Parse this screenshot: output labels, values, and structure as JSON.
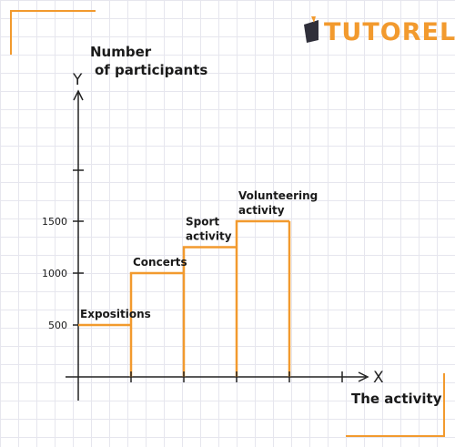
{
  "brand": {
    "name": "TUTORELA",
    "color": "#f29a2e"
  },
  "chart_data": {
    "type": "bar",
    "categories": [
      "Expositions",
      "Concerts",
      "Sport activity",
      "Volunteering activity"
    ],
    "category_lines": [
      [
        "Expositions"
      ],
      [
        "Concerts"
      ],
      [
        "Sport",
        "activity"
      ],
      [
        "Volunteering",
        "activity"
      ]
    ],
    "values": [
      500,
      1000,
      1250,
      1500
    ],
    "yticks": [
      "500",
      "1000",
      "1500"
    ],
    "ylabel": "Number of participants",
    "ylabel_lines": [
      "Number",
      "of participants"
    ],
    "xlabel": "The activity",
    "x_axis_letter": "X",
    "y_axis_letter": "Y",
    "ylim": [
      0,
      2000
    ],
    "grid": true,
    "bar_color": "#f29a2e"
  }
}
